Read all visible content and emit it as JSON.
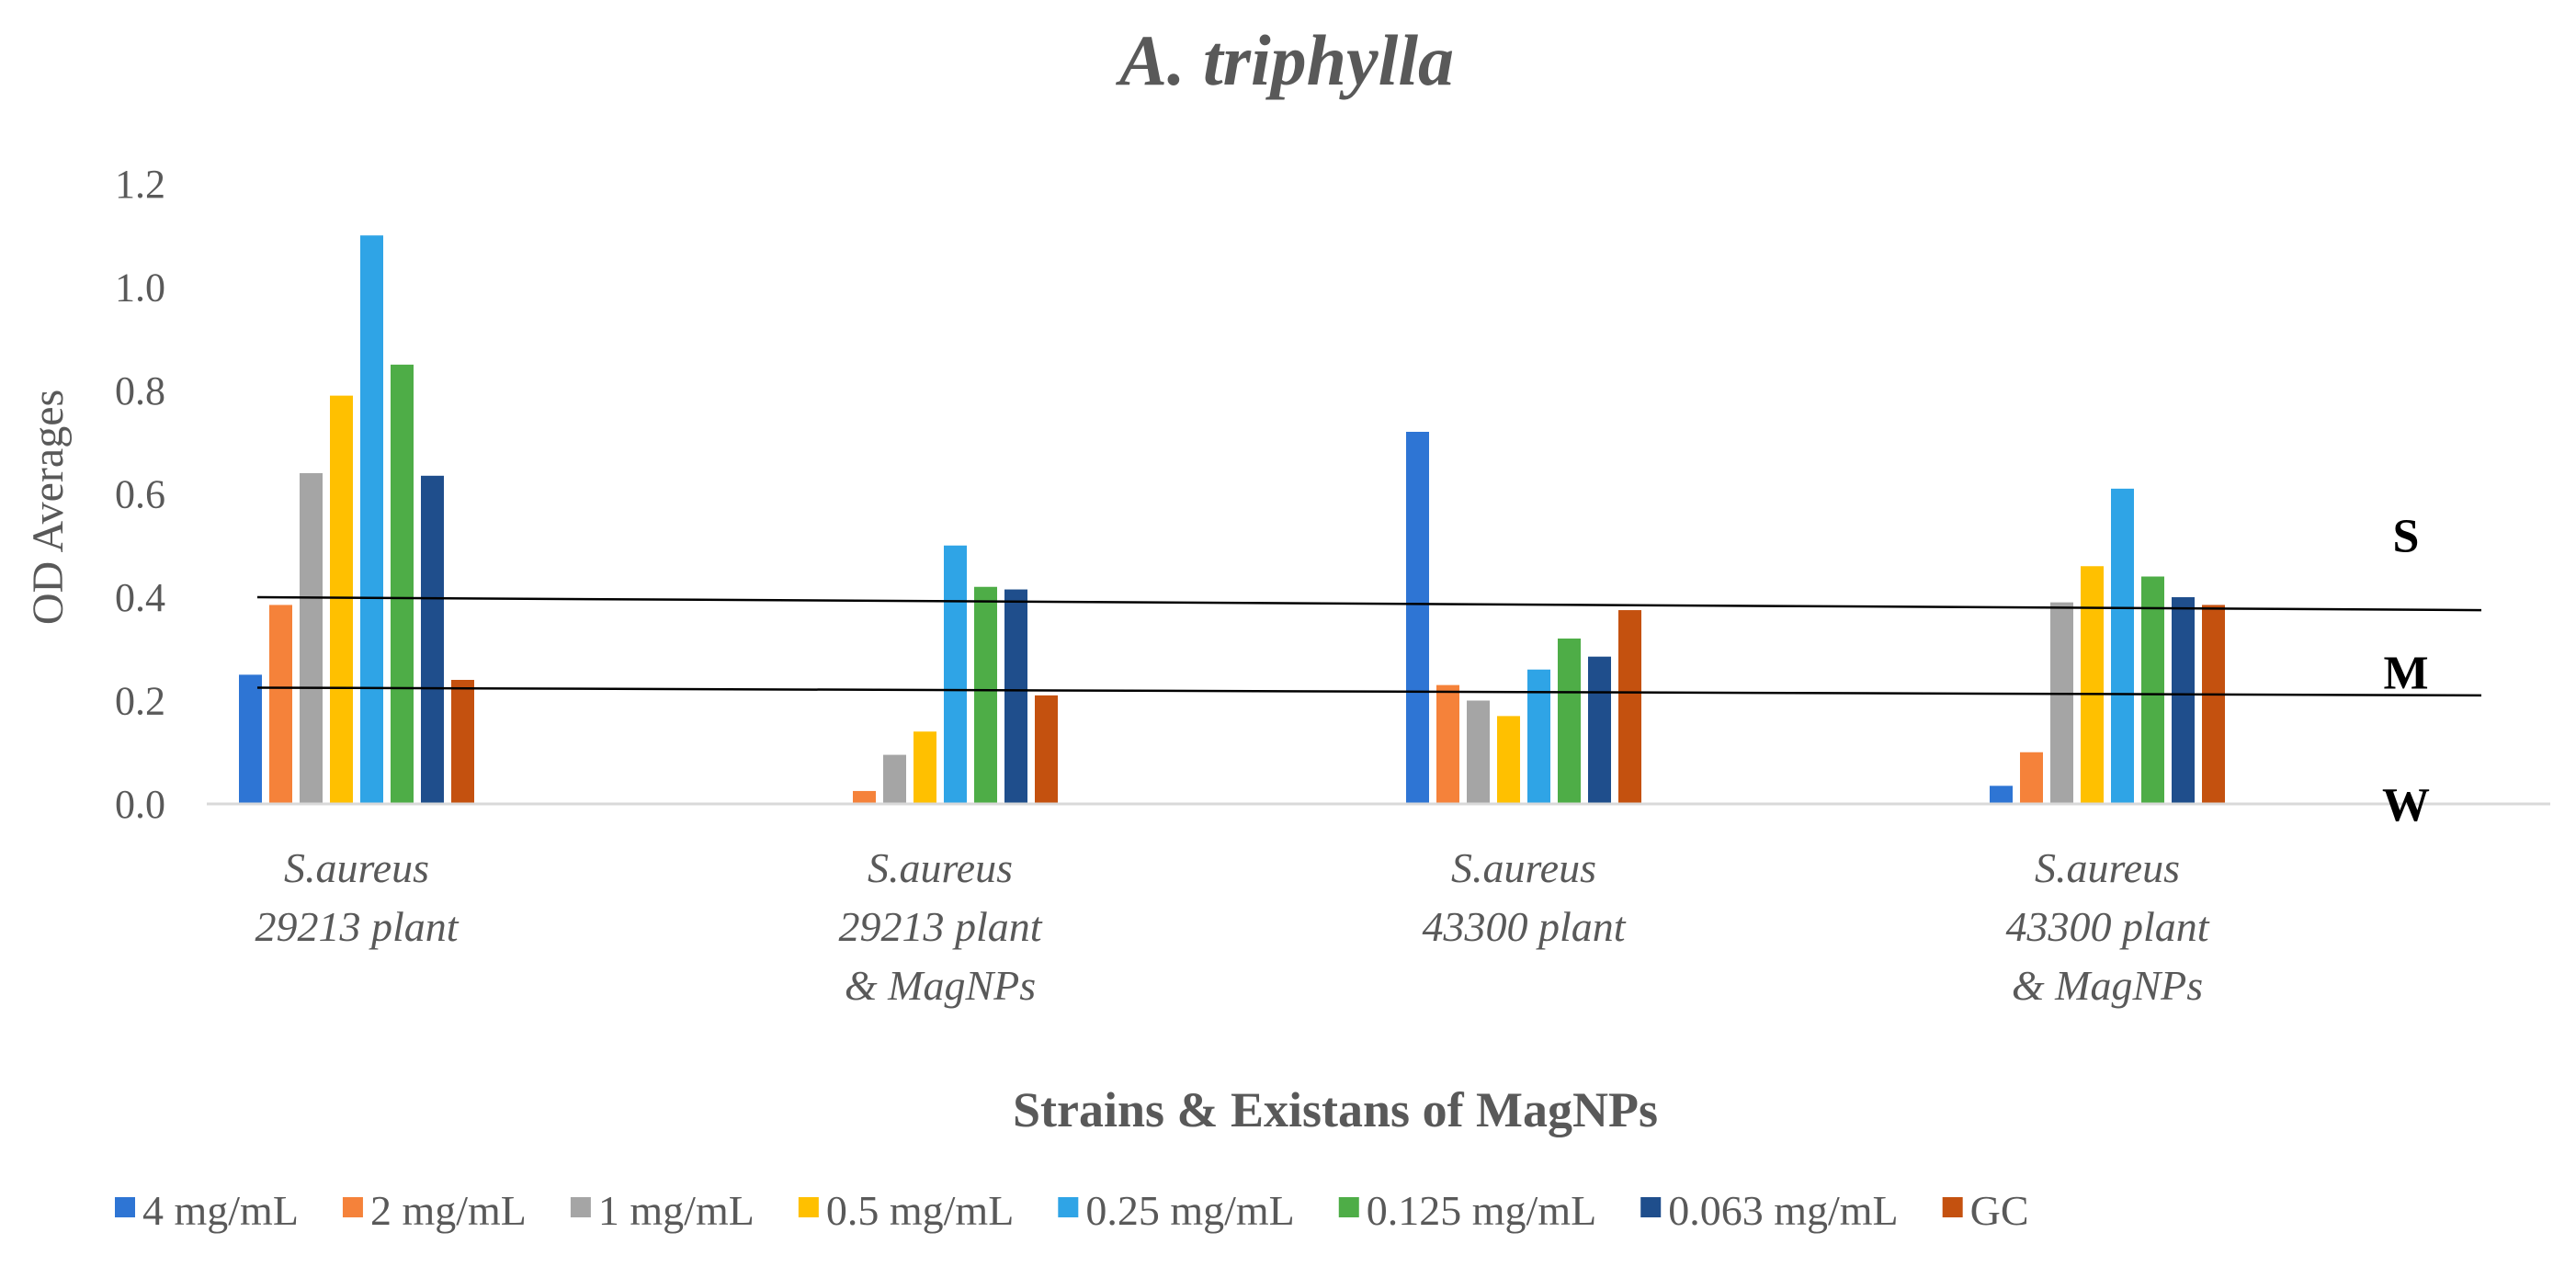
{
  "chart_data": {
    "type": "bar",
    "title": "A. triphylla",
    "xlabel": "Strains & Existans of MagNPs",
    "ylabel": "OD Averages",
    "ylim": [
      0,
      1.2
    ],
    "yticks": [
      "0.0",
      "0.2",
      "0.4",
      "0.6",
      "0.8",
      "1.0",
      "1.2"
    ],
    "grid": false,
    "legend_position": "bottom",
    "categories": [
      [
        "S.aureus",
        "29213 plant"
      ],
      [
        "S.aureus",
        "29213 plant",
        "& MagNPs"
      ],
      [
        "S.aureus",
        "43300 plant"
      ],
      [
        "S.aureus",
        "43300 plant",
        "& MagNPs"
      ]
    ],
    "series": [
      {
        "name": "4 mg/mL",
        "color": "#2E75D4",
        "values": [
          0.25,
          0.0,
          0.72,
          0.035
        ]
      },
      {
        "name": "2 mg/mL",
        "color": "#F5823A",
        "values": [
          0.385,
          0.025,
          0.23,
          0.1
        ]
      },
      {
        "name": "1 mg/mL",
        "color": "#A5A5A5",
        "values": [
          0.64,
          0.095,
          0.2,
          0.39
        ]
      },
      {
        "name": "0.5 mg/mL",
        "color": "#FFC000",
        "values": [
          0.79,
          0.14,
          0.17,
          0.46
        ]
      },
      {
        "name": "0.25 mg/mL",
        "color": "#2FA4E6",
        "values": [
          1.1,
          0.5,
          0.26,
          0.61
        ]
      },
      {
        "name": "0.125 mg/mL",
        "color": "#4EAD47",
        "values": [
          0.85,
          0.42,
          0.32,
          0.44
        ]
      },
      {
        "name": "0.063 mg/mL",
        "color": "#1F4E8C",
        "values": [
          0.635,
          0.415,
          0.285,
          0.4
        ]
      },
      {
        "name": "GC",
        "color": "#C4510F",
        "values": [
          0.24,
          0.21,
          0.375,
          0.385
        ]
      }
    ],
    "annotations": {
      "threshold_lines": [
        {
          "label": "upper",
          "start": 0.4,
          "end": 0.375
        },
        {
          "label": "lower",
          "start": 0.225,
          "end": 0.21
        }
      ],
      "zone_labels": [
        {
          "text": "S",
          "value": 0.52
        },
        {
          "text": "M",
          "value": 0.255
        },
        {
          "text": "W",
          "value": 0.0
        }
      ]
    }
  }
}
